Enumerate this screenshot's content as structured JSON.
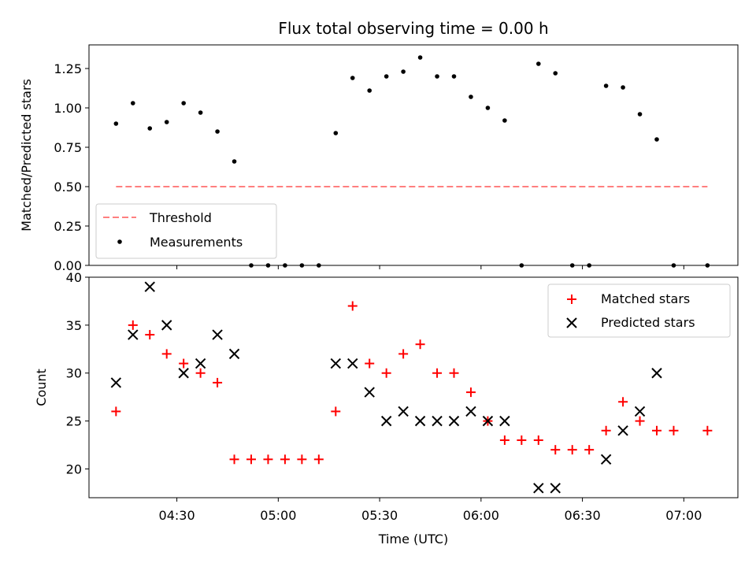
{
  "chart_data": [
    {
      "type": "scatter",
      "title": "Flux total observing time = 0.00 h",
      "ylabel": "Matched/Predicted stars",
      "ylim": [
        0,
        1.4
      ],
      "yticks": [
        "0.00",
        "0.25",
        "0.50",
        "0.75",
        "1.00",
        "1.25"
      ],
      "grid": false,
      "legend_loc": "lower-left",
      "threshold": {
        "name": "Threshold",
        "value": 0.5,
        "color": "#ff7f7f",
        "x_start": "04:12",
        "x_end": "07:07"
      },
      "measurements": {
        "name": "Measurements",
        "color": "#000000",
        "points": [
          [
            "04:12",
            0.9
          ],
          [
            "04:17",
            1.03
          ],
          [
            "04:22",
            0.87
          ],
          [
            "04:27",
            0.91
          ],
          [
            "04:32",
            1.03
          ],
          [
            "04:37",
            0.97
          ],
          [
            "04:42",
            0.85
          ],
          [
            "04:47",
            0.66
          ],
          [
            "04:52",
            0.0
          ],
          [
            "04:57",
            0.0
          ],
          [
            "05:02",
            0.0
          ],
          [
            "05:07",
            0.0
          ],
          [
            "05:12",
            0.0
          ],
          [
            "05:17",
            0.84
          ],
          [
            "05:22",
            1.19
          ],
          [
            "05:27",
            1.11
          ],
          [
            "05:32",
            1.2
          ],
          [
            "05:37",
            1.23
          ],
          [
            "05:42",
            1.32
          ],
          [
            "05:47",
            1.2
          ],
          [
            "05:52",
            1.2
          ],
          [
            "05:57",
            1.07
          ],
          [
            "06:02",
            1.0
          ],
          [
            "06:07",
            0.92
          ],
          [
            "06:12",
            0.0
          ],
          [
            "06:17",
            1.28
          ],
          [
            "06:22",
            1.22
          ],
          [
            "06:27",
            0.0
          ],
          [
            "06:32",
            0.0
          ],
          [
            "06:37",
            1.14
          ],
          [
            "06:42",
            1.13
          ],
          [
            "06:47",
            0.96
          ],
          [
            "06:52",
            0.8
          ],
          [
            "06:57",
            0.0
          ],
          [
            "07:07",
            0.0
          ]
        ]
      }
    },
    {
      "type": "scatter",
      "xlabel": "Time (UTC)",
      "ylabel": "Count",
      "ylim": [
        17,
        40
      ],
      "yticks": [
        "20",
        "25",
        "30",
        "35",
        "40"
      ],
      "xlim": [
        "04:04",
        "07:16"
      ],
      "xticks": [
        "04:30",
        "05:00",
        "05:30",
        "06:00",
        "06:30",
        "07:00"
      ],
      "grid": false,
      "legend_loc": "upper-right",
      "series": [
        {
          "name": "Matched stars",
          "marker": "plus",
          "color": "#ff0000",
          "points": [
            [
              "04:12",
              26
            ],
            [
              "04:17",
              35
            ],
            [
              "04:22",
              34
            ],
            [
              "04:27",
              32
            ],
            [
              "04:32",
              31
            ],
            [
              "04:37",
              30
            ],
            [
              "04:42",
              29
            ],
            [
              "04:47",
              21
            ],
            [
              "04:52",
              21
            ],
            [
              "04:57",
              21
            ],
            [
              "05:02",
              21
            ],
            [
              "05:07",
              21
            ],
            [
              "05:12",
              21
            ],
            [
              "05:17",
              26
            ],
            [
              "05:22",
              37
            ],
            [
              "05:27",
              31
            ],
            [
              "05:32",
              30
            ],
            [
              "05:37",
              32
            ],
            [
              "05:42",
              33
            ],
            [
              "05:47",
              30
            ],
            [
              "05:52",
              30
            ],
            [
              "05:57",
              28
            ],
            [
              "06:02",
              25
            ],
            [
              "06:07",
              23
            ],
            [
              "06:12",
              23
            ],
            [
              "06:17",
              23
            ],
            [
              "06:22",
              22
            ],
            [
              "06:27",
              22
            ],
            [
              "06:32",
              22
            ],
            [
              "06:37",
              24
            ],
            [
              "06:42",
              27
            ],
            [
              "06:47",
              25
            ],
            [
              "06:52",
              24
            ],
            [
              "06:57",
              24
            ],
            [
              "07:07",
              24
            ]
          ]
        },
        {
          "name": "Predicted stars",
          "marker": "x",
          "color": "#000000",
          "points": [
            [
              "04:12",
              29
            ],
            [
              "04:17",
              34
            ],
            [
              "04:22",
              39
            ],
            [
              "04:27",
              35
            ],
            [
              "04:32",
              30
            ],
            [
              "04:37",
              31
            ],
            [
              "04:42",
              34
            ],
            [
              "04:47",
              32
            ],
            [
              "05:17",
              31
            ],
            [
              "05:22",
              31
            ],
            [
              "05:27",
              28
            ],
            [
              "05:32",
              25
            ],
            [
              "05:37",
              26
            ],
            [
              "05:42",
              25
            ],
            [
              "05:47",
              25
            ],
            [
              "05:52",
              25
            ],
            [
              "05:57",
              26
            ],
            [
              "06:02",
              25
            ],
            [
              "06:07",
              25
            ],
            [
              "06:17",
              18
            ],
            [
              "06:22",
              18
            ],
            [
              "06:37",
              21
            ],
            [
              "06:42",
              24
            ],
            [
              "06:47",
              26
            ],
            [
              "06:52",
              30
            ]
          ]
        }
      ]
    }
  ]
}
